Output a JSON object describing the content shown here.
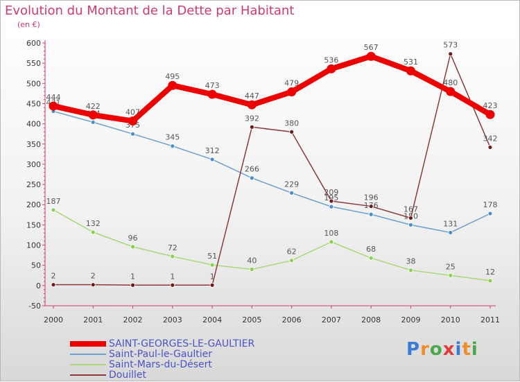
{
  "header": {
    "title": "Evolution du Montant de la Dette par Habitant",
    "unit": "(en €)"
  },
  "logo": {
    "text": "Proxiti",
    "colors": [
      "#3a7bd5",
      "#f28c28",
      "#4aa84a",
      "#e03c3c",
      "#3a7bd5",
      "#f28c28",
      "#4aa84a"
    ]
  },
  "chart_data": {
    "type": "line",
    "title": "Evolution du Montant de la Dette par Habitant",
    "ylabel": "(en €)",
    "xlabel": "",
    "ylim": [
      -50,
      600
    ],
    "yticks": [
      -50,
      0,
      50,
      100,
      150,
      200,
      250,
      300,
      350,
      400,
      450,
      500,
      550,
      600
    ],
    "x": [
      "2000",
      "2001",
      "2002",
      "2003",
      "2004",
      "2005",
      "2006",
      "2007",
      "2008",
      "2009",
      "2010",
      "2011"
    ],
    "grid": false,
    "legend_position": "bottom",
    "series": [
      {
        "name": "SAINT-GEORGES-LE-GAULTIER",
        "color": "#ee0000",
        "marker": "#ee0000",
        "width": 8,
        "values": [
          444,
          422,
          407,
          495,
          473,
          447,
          479,
          536,
          567,
          531,
          480,
          423
        ]
      },
      {
        "name": "Saint-Paul-le-Gaultier",
        "color": "#6aa0d2",
        "marker": "#4a8ccc",
        "width": 1.5,
        "values": [
          431,
          404,
          375,
          345,
          312,
          266,
          229,
          195,
          176,
          150,
          131,
          178
        ]
      },
      {
        "name": "Saint-Mars-du-Désert",
        "color": "#a8d878",
        "marker": "#8ccf4e",
        "width": 1.5,
        "values": [
          187,
          132,
          96,
          72,
          51,
          40,
          62,
          108,
          68,
          38,
          25,
          12
        ]
      },
      {
        "name": "Douillet",
        "color": "#8a3a3a",
        "marker": "#6b1a1a",
        "width": 1.5,
        "values": [
          2,
          2,
          1,
          1,
          1,
          392,
          380,
          209,
          196,
          167,
          573,
          342
        ]
      }
    ]
  }
}
